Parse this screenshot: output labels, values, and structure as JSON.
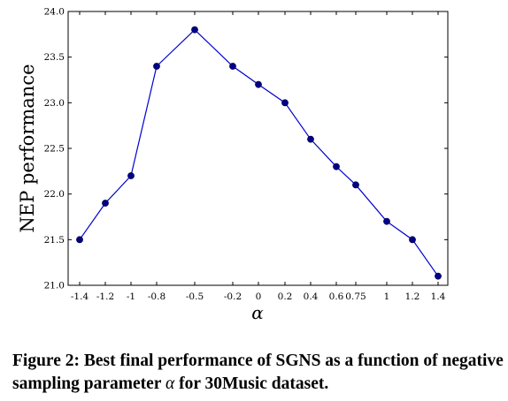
{
  "chart_data": {
    "type": "line",
    "xlabel": "α",
    "ylabel": "NEP performance",
    "ylim": [
      21.0,
      24.0
    ],
    "yticks": [
      "21.0",
      "21.5",
      "22.0",
      "22.5",
      "23.0",
      "23.5",
      "24.0"
    ],
    "xtick_labels": [
      "-1.4",
      "-1.2",
      "-1",
      "-0.8",
      "-0.5",
      "-0.2",
      "0",
      "0.2",
      "0.4",
      "0.6",
      "0.75",
      "1",
      "1.2",
      "1.4"
    ],
    "series": [
      {
        "color": "#0000cc",
        "marker_color": "#00008b",
        "x": [
          -1.4,
          -1.2,
          -1,
          -0.8,
          -0.5,
          -0.2,
          0,
          0.2,
          0.4,
          0.6,
          0.75,
          1,
          1.2,
          1.4
        ],
        "values": [
          21.5,
          21.9,
          22.2,
          23.4,
          23.8,
          23.4,
          23.2,
          23.0,
          22.6,
          22.3,
          22.1,
          21.7,
          21.5,
          21.1
        ]
      }
    ],
    "grid": false
  },
  "caption": {
    "prefix": "Figure 2: Best final performance of SGNS as a function of negative sampling parameter ",
    "symbol": "α",
    "suffix": " for 30Music dataset."
  }
}
